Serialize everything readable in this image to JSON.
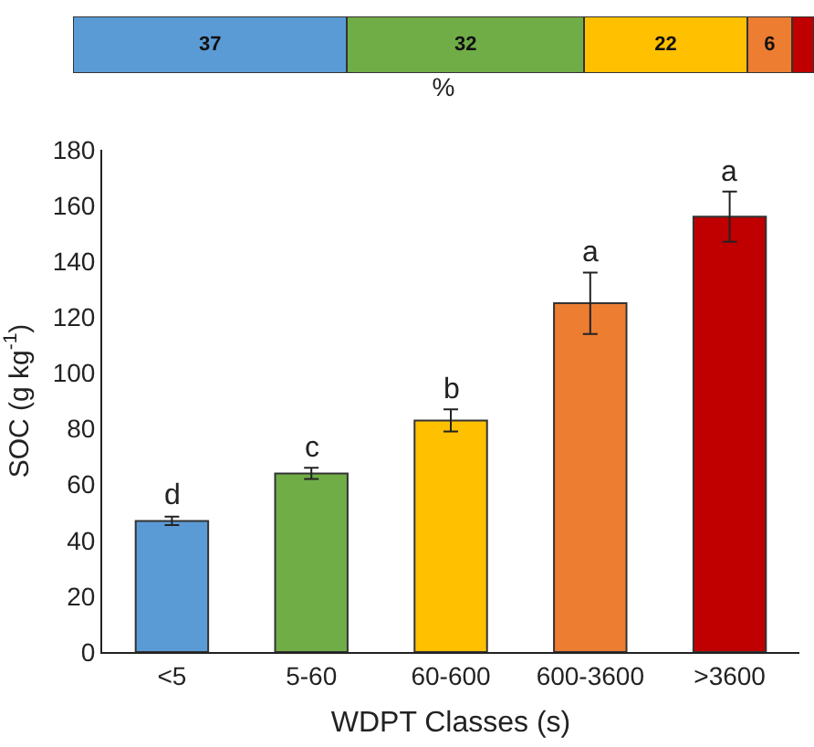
{
  "chart_data": [
    {
      "type": "bar",
      "orientation": "horizontal",
      "stacked": true,
      "xlabel": "%",
      "categories": [
        null
      ],
      "xlim": [
        0,
        100
      ],
      "series": [
        {
          "color": "#5b9bd5",
          "values": [
            37
          ],
          "value_labels": [
            "37"
          ]
        },
        {
          "color": "#70ad47",
          "values": [
            32
          ],
          "value_labels": [
            "32"
          ]
        },
        {
          "color": "#ffc000",
          "values": [
            22
          ],
          "value_labels": [
            "22"
          ]
        },
        {
          "color": "#ed7d31",
          "values": [
            6
          ],
          "value_labels": [
            "6"
          ]
        },
        {
          "color": "#c00000",
          "values": [
            3
          ],
          "value_labels": [
            null
          ]
        }
      ]
    },
    {
      "type": "bar",
      "xlabel": "WDPT Classes (s)",
      "ylabel": "SOC (g kg$^{-1}$)",
      "categories": [
        "<5",
        "5-60",
        "60-600",
        "600-3600",
        ">3600"
      ],
      "values": [
        47,
        64,
        83,
        125,
        156
      ],
      "errors": [
        1.5,
        2,
        4,
        11,
        9
      ],
      "colors": [
        "#5b9bd5",
        "#70ad47",
        "#ffc000",
        "#ed7d31",
        "#c00000"
      ],
      "ylim": [
        0,
        180
      ],
      "yticks": [
        0,
        20,
        40,
        60,
        80,
        100,
        120,
        140,
        160,
        180
      ],
      "annotations": [
        {
          "text": "d",
          "x": "<5",
          "y": 49
        },
        {
          "text": "c",
          "x": "5-60",
          "y": 66
        },
        {
          "text": "b",
          "x": "60-600",
          "y": 87
        },
        {
          "text": "a",
          "x": "600-3600",
          "y": 136
        },
        {
          "text": "a",
          "x": ">3600",
          "y": 165
        }
      ]
    }
  ]
}
